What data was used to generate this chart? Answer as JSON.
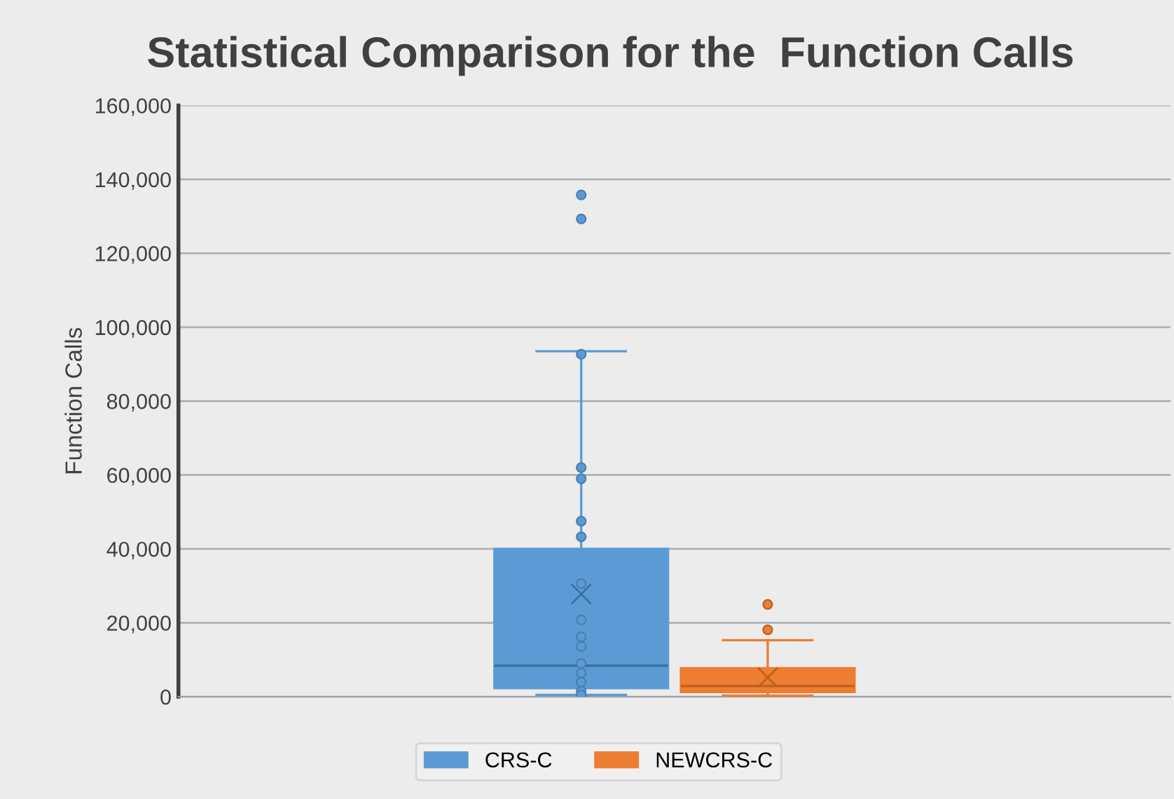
{
  "chart_data": {
    "type": "box",
    "title": "Statistical Comparison for the  Function Calls",
    "ylabel": "Function Calls",
    "categories": [
      null
    ],
    "series": [
      {
        "name": "CRS-C",
        "color": "#5b9bd5",
        "boxes": [
          {
            "low": 500,
            "q1": 2300,
            "median": 8400,
            "q3": 40000,
            "high": 93500,
            "mean": 27800,
            "outliers": [
              135800,
              129300,
              92700,
              62000,
              59000,
              47500,
              43300,
              30600,
              20800,
              16200,
              13600,
              9000,
              6400,
              3900,
              1500,
              500
            ]
          }
        ]
      },
      {
        "name": "NEWCRS-C",
        "color": "#ed7d31",
        "boxes": [
          {
            "low": 300,
            "q1": 1300,
            "median": 2900,
            "q3": 7700,
            "high": 15300,
            "mean": 5200,
            "outliers": [
              25000,
              18100
            ]
          }
        ]
      }
    ],
    "ylim": [
      0,
      160000
    ],
    "yticks": [
      {
        "value": 0,
        "label": "0"
      },
      {
        "value": 20000,
        "label": "20,000"
      },
      {
        "value": 40000,
        "label": "40,000"
      },
      {
        "value": 60000,
        "label": "60,000"
      },
      {
        "value": 80000,
        "label": "80,000"
      },
      {
        "value": 100000,
        "label": "100,000"
      },
      {
        "value": 120000,
        "label": "120,000"
      },
      {
        "value": 140000,
        "label": "140,000"
      },
      {
        "value": 160000,
        "label": "160,000"
      }
    ],
    "grid": "y",
    "legend": "bottom"
  }
}
